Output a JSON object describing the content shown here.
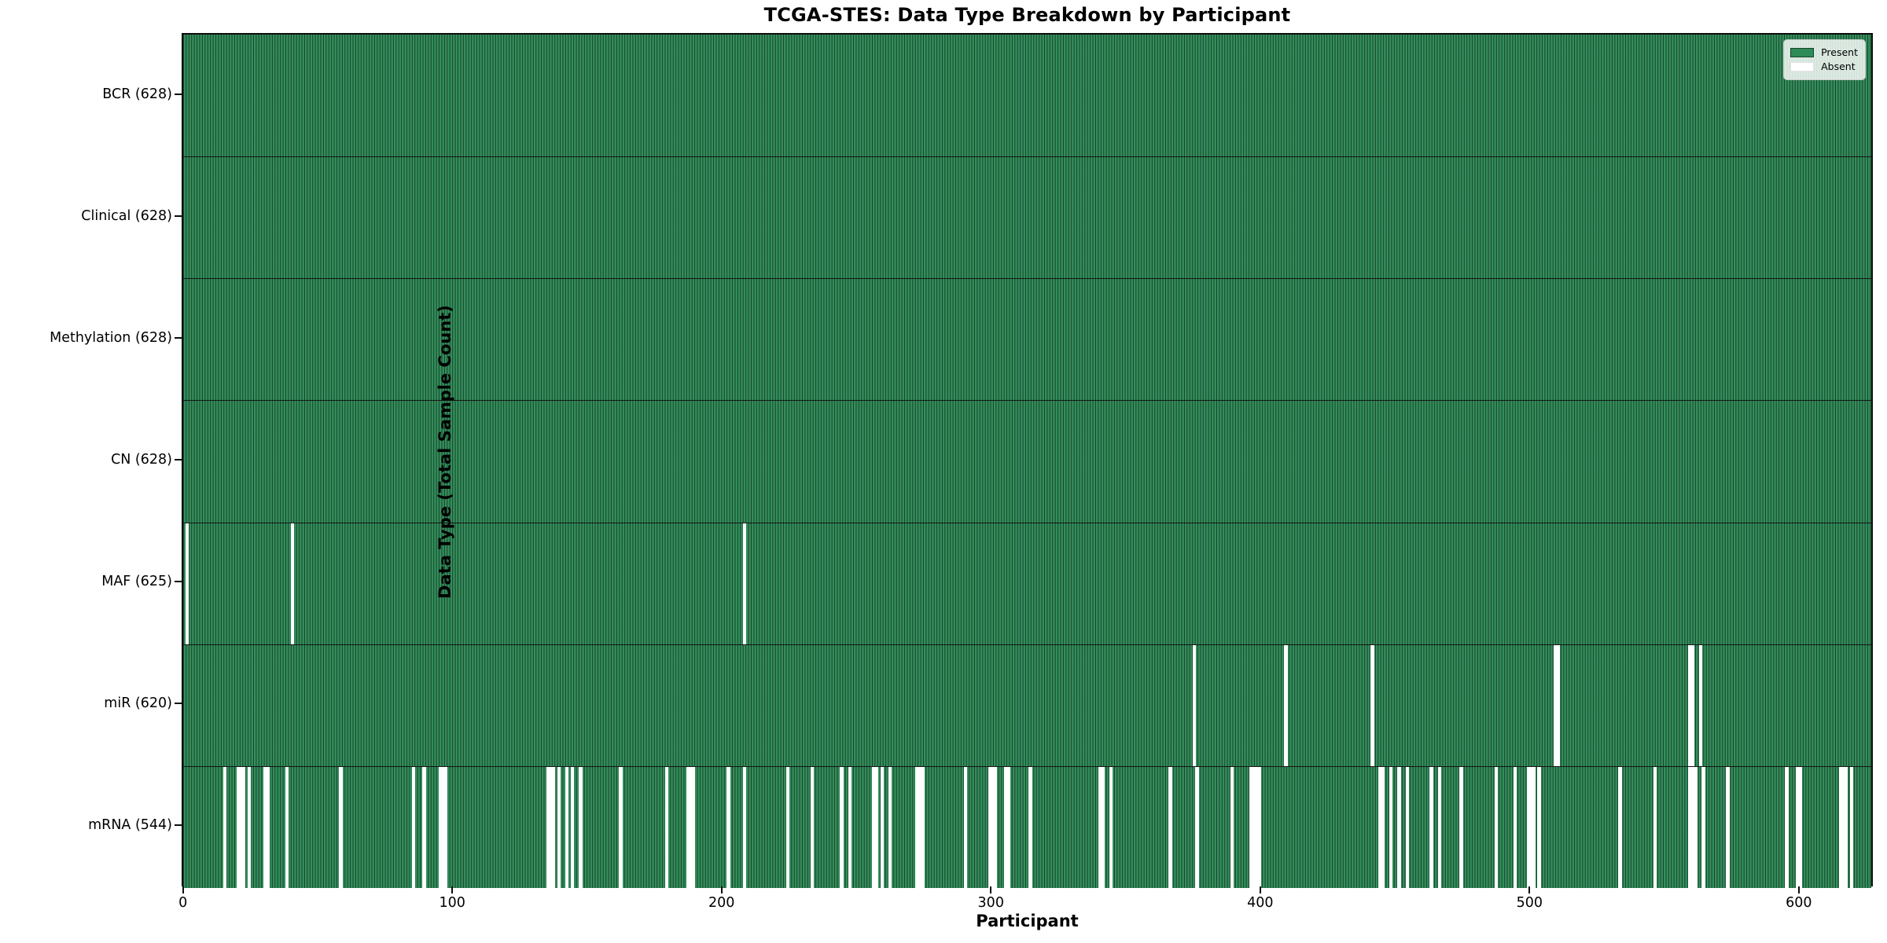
{
  "title": "TCGA-STES: Data Type Breakdown by Participant",
  "xlabel": "Participant",
  "ylabel": "Data Type (Total Sample Count)",
  "legend": {
    "present_label": "Present",
    "absent_label": "Absent"
  },
  "colors": {
    "present": "#2E8B57",
    "absent": "#ffffff",
    "bar_edge": "rgba(0,0,0,0.52)",
    "spine": "#0d0d0d"
  },
  "chart_data": {
    "type": "heatmap",
    "title": "TCGA-STES: Data Type Breakdown by Participant",
    "xlabel": "Participant",
    "ylabel": "Data Type (Total Sample Count)",
    "x_ticks": [
      0,
      100,
      200,
      300,
      400,
      500,
      600
    ],
    "n_participants": 628,
    "xlim": [
      -0.5,
      627.5
    ],
    "legend_entries": [
      "Present",
      "Absent"
    ],
    "legend_position": "upper right",
    "grid": false,
    "rows": [
      {
        "label": "BCR",
        "total": 628,
        "absent": []
      },
      {
        "label": "Clinical",
        "total": 628,
        "absent": []
      },
      {
        "label": "Methylation",
        "total": 628,
        "absent": []
      },
      {
        "label": "CN",
        "total": 628,
        "absent": []
      },
      {
        "label": "MAF",
        "total": 625,
        "absent": [
          1,
          40,
          208
        ]
      },
      {
        "label": "miR",
        "total": 620,
        "absent": [
          375,
          409,
          441,
          509,
          510,
          559,
          560,
          563
        ]
      },
      {
        "label": "mRNA",
        "total": 544,
        "absent": [
          15,
          20,
          21,
          22,
          24,
          30,
          31,
          38,
          58,
          85,
          89,
          95,
          96,
          97,
          135,
          136,
          137,
          139,
          142,
          144,
          147,
          162,
          179,
          187,
          188,
          189,
          202,
          208,
          224,
          233,
          244,
          247,
          256,
          257,
          259,
          262,
          272,
          273,
          274,
          290,
          299,
          300,
          301,
          305,
          306,
          314,
          340,
          341,
          344,
          366,
          376,
          389,
          396,
          397,
          398,
          399,
          444,
          445,
          448,
          451,
          454,
          463,
          466,
          474,
          487,
          494,
          499,
          500,
          501,
          503,
          533,
          546,
          559,
          560,
          561,
          564,
          573,
          595,
          599,
          600,
          615,
          616,
          617,
          619
        ]
      }
    ]
  }
}
